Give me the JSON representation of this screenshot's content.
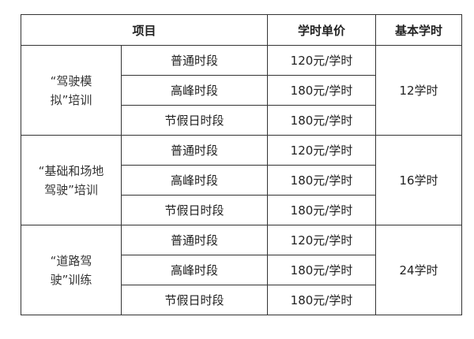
{
  "header": {
    "item": "项目",
    "unit_price": "学时单价",
    "basic_hours": "基本学时"
  },
  "groups": [
    {
      "name_line1": "“驾驶模",
      "name_line2": "拟”培训",
      "hours": "12学时",
      "rows": [
        {
          "period": "普通时段",
          "price": "120元/学时"
        },
        {
          "period": "高峰时段",
          "price": "180元/学时"
        },
        {
          "period": "节假日时段",
          "price": "180元/学时"
        }
      ]
    },
    {
      "name_line1": "“基础和场地",
      "name_line2": "驾驶”培训",
      "hours": "16学时",
      "rows": [
        {
          "period": "普通时段",
          "price": "120元/学时"
        },
        {
          "period": "高峰时段",
          "price": "180元/学时"
        },
        {
          "period": "节假日时段",
          "price": "180元/学时"
        }
      ]
    },
    {
      "name_line1": "“道路驾",
      "name_line2": "驶”训练",
      "hours": "24学时",
      "rows": [
        {
          "period": "普通时段",
          "price": "120元/学时"
        },
        {
          "period": "高峰时段",
          "price": "180元/学时"
        },
        {
          "period": "节假日时段",
          "price": "180元/学时"
        }
      ]
    }
  ]
}
